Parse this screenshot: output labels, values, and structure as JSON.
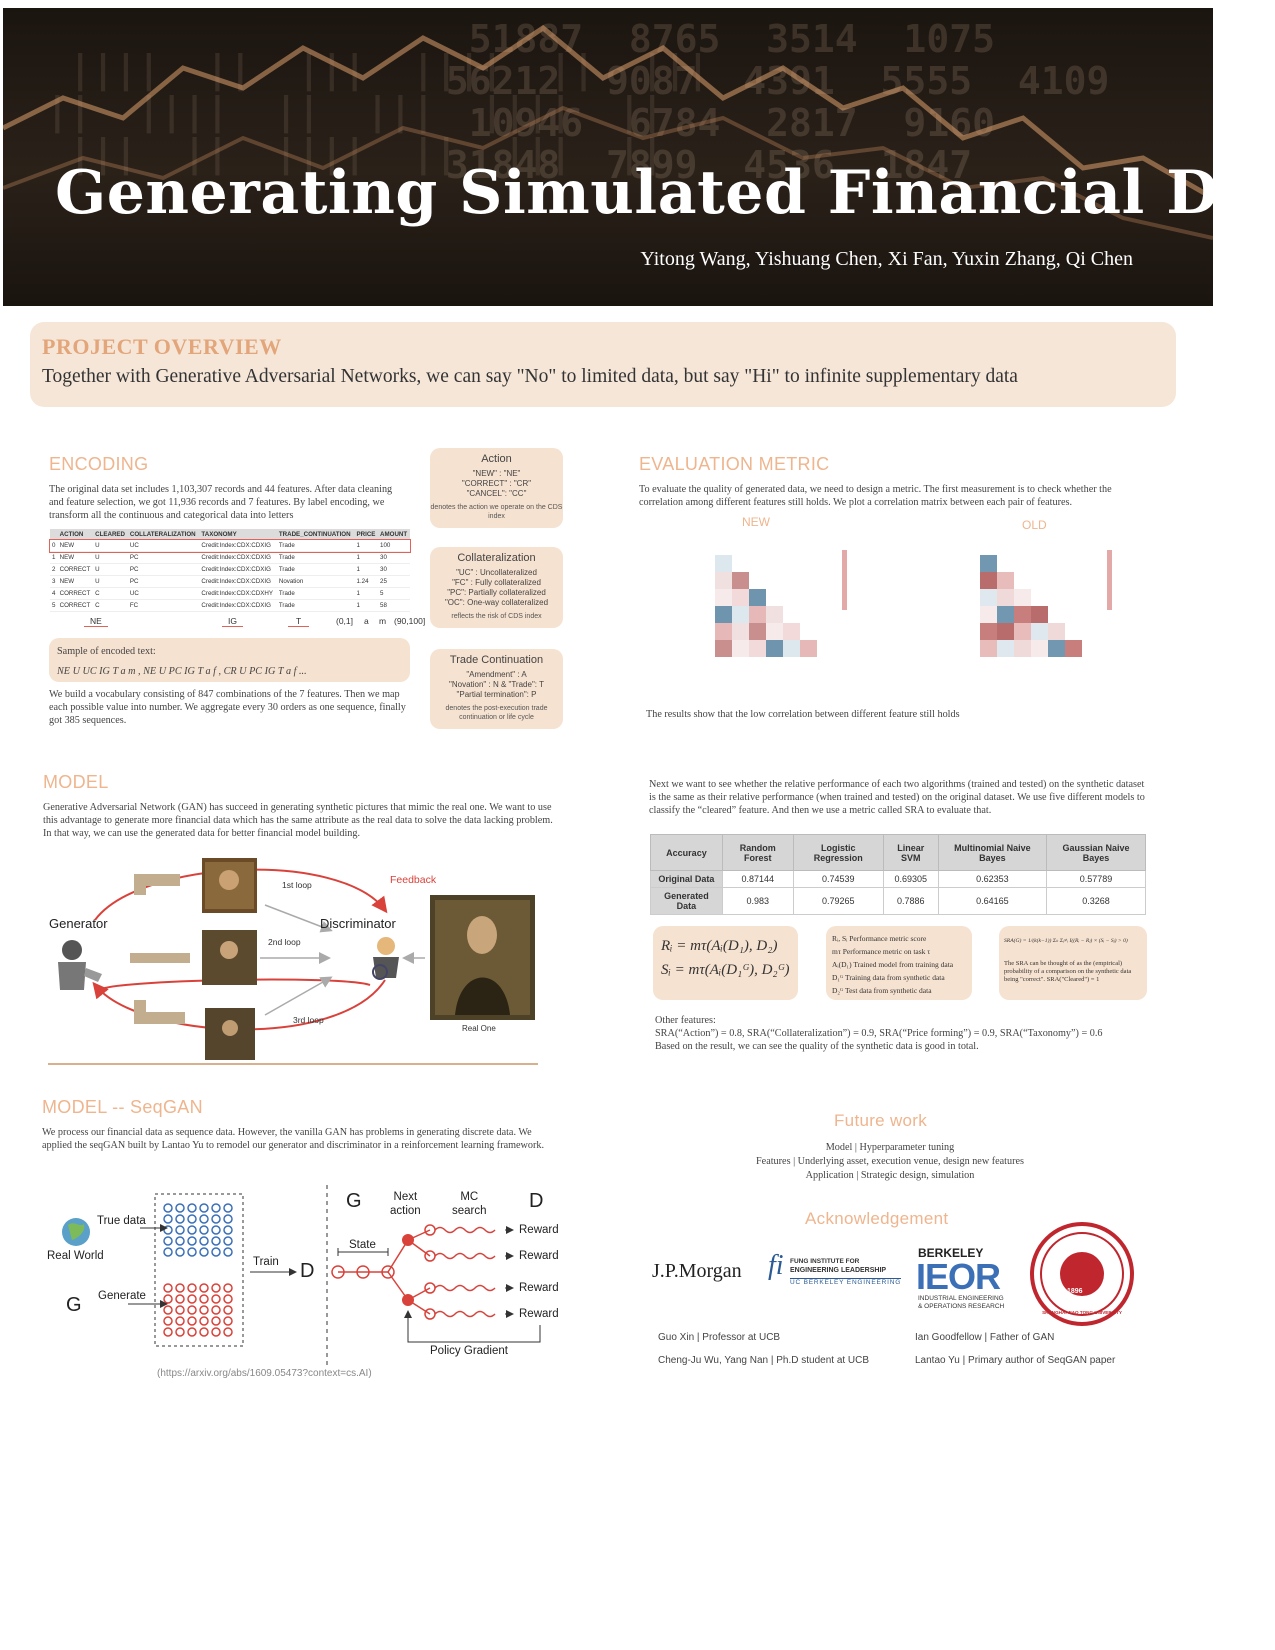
{
  "header": {
    "title": "Generating Simulated Financial Data",
    "authors": "Yitong Wang, Yishuang Chen, Xi Fan, Yuxin Zhang, Qi Chen"
  },
  "overview": {
    "heading": "PROJECT OVERVIEW",
    "text": "Together with Generative Adversarial Networks, we can say \"No\" to limited data, but say \"Hi\" to infinite supplementary data"
  },
  "encoding": {
    "heading": "ENCODING",
    "intro": "The original data set includes 1,103,307 records and 44 features. After data  cleaning and feature selection, we got 11,936 records and 7 features. By label encoding, we transform all the continuous and categorical data into letters",
    "table": {
      "columns": [
        "",
        "ACTION",
        "CLEARED",
        "COLLATERALIZATION",
        "TAXONOMY",
        "TRADE_CONTINUATION",
        "PRICE",
        "AMOUNT"
      ],
      "rows": [
        [
          "0",
          "NEW",
          "U",
          "UC",
          "Credit:Index:CDX:CDXIG",
          "Trade",
          "1",
          "100"
        ],
        [
          "1",
          "NEW",
          "U",
          "PC",
          "Credit:Index:CDX:CDXIG",
          "Trade",
          "1",
          "30"
        ],
        [
          "2",
          "CORRECT",
          "U",
          "PC",
          "Credit:Index:CDX:CDXIG",
          "Trade",
          "1",
          "30"
        ],
        [
          "3",
          "NEW",
          "U",
          "PC",
          "Credit:Index:CDX:CDXIG",
          "Novation",
          "1.24",
          "25"
        ],
        [
          "4",
          "CORRECT",
          "C",
          "UC",
          "Credit:Index:CDX:CDXHY",
          "Trade",
          "1",
          "5"
        ],
        [
          "5",
          "CORRECT",
          "C",
          "FC",
          "Credit:Index:CDX:CDXIG",
          "Trade",
          "1",
          "58"
        ]
      ],
      "codes": [
        "NE",
        "IG",
        "T",
        "(0,1]",
        "a",
        "m",
        "(90,100]"
      ]
    },
    "sample_label": "Sample of encoded text:",
    "sample_text": "NE U UC IG T a m , NE U PC IG T a f , CR U PC IG T a f ...",
    "vocab": "We build a vocabulary consisting of 847 combinations of the 7 features. Then we map each possible value into number. We aggregate every 30 orders as one sequence, finally got 385 sequences.",
    "action_box": {
      "title": "Action",
      "lines": [
        "\"NEW\" : \"NE\"",
        "\"CORRECT\" : \"CR\"",
        "\"CANCEL\": \"CC\""
      ],
      "note": "denotes the action we operate on the CDS index"
    },
    "collat_box": {
      "title": "Collateralization",
      "lines": [
        "\"UC\" : Uncollateralized",
        "\"FC\" : Fully collateralized",
        "\"PC\": Partially collateralized",
        "\"OC\": One-way collateralized"
      ],
      "note": "reflects the risk of CDS index"
    },
    "trade_box": {
      "title": "Trade Continuation",
      "lines": [
        "\"Amendment\" : A",
        "\"Novation\" : N & \"Trade\": T",
        "\"Partial termination\": P"
      ],
      "note": "denotes the post-execution trade continuation or life cycle"
    }
  },
  "model": {
    "heading": "MODEL",
    "text": "Generative Adversarial Network (GAN) has succeed in generating synthetic pictures that mimic the real one. We want to use this advantage to generate more financial data which has the same attribute as the real data to solve the data lacking problem. In that way, we can use the generated data for better financial model building.",
    "diagram": {
      "generator": "Generator",
      "discriminator": "Discriminator",
      "feedback": "Feedback",
      "loop1": "1st loop",
      "loop2": "2nd loop",
      "loop3": "3rd loop",
      "real": "Real One"
    }
  },
  "seqgan": {
    "heading": "MODEL -- SeqGAN",
    "text": "We process our financial data as sequence data. However, the vanilla GAN has problems in generating discrete data. We applied the seqGAN built by Lantao Yu to remodel our generator and discriminator in a reinforcement learning framework.",
    "diagram": {
      "true_data": "True data",
      "real_world": "Real World",
      "g": "G",
      "generate": "Generate",
      "train": "Train",
      "d": "D",
      "g2": "G",
      "next_action": "Next\naction",
      "mc_search": "MC\nsearch",
      "d2": "D",
      "state": "State",
      "rewards": [
        "Reward",
        "Reward",
        "Reward",
        "Reward"
      ],
      "policy_gradient": "Policy Gradient"
    },
    "link": "(https://arxiv.org/abs/1609.05473?context=cs.AI)"
  },
  "evaluation": {
    "heading": "EVALUATION METRIC",
    "text": "To evaluate the quality of generated data, we need to design a metric. The first measurement is to check whether the correlation among different features still holds. We plot a correlation matrix between each pair of features.",
    "new_label": "NEW",
    "old_label": "OLD",
    "result": "The results show that the low correlation between different feature still holds",
    "text2": "Next we want to see whether the relative performance of each two algorithms (trained and tested) on the synthetic dataset is the same as their relative performance (when trained and tested) on the original dataset. We use five different models to classify the “cleared” feature. And then we use a metric called SRA to evaluate that.",
    "table": {
      "columns": [
        "Accuracy",
        "Random Forest",
        "Logistic Regression",
        "Linear SVM",
        "Multinomial Naive Bayes",
        "Gaussian Naive Bayes"
      ],
      "rows": [
        [
          "Original Data",
          "0.87144",
          "0.74539",
          "0.69305",
          "0.62353",
          "0.57789"
        ],
        [
          "Generated Data",
          "0.983",
          "0.79265",
          "0.7886",
          "0.64165",
          "0.3268"
        ]
      ]
    },
    "formula1": "Rᵢ = mτ(Aᵢ(D₁), D₂)",
    "formula2": "Sᵢ = mτ(Aᵢ(D₁ᴳ), D₂ᴳ)",
    "defs": [
      "Rᵢ, Sᵢ  Performance metric score",
      "mτ    Performance metric on task τ",
      "Aᵢ(D₁)  Trained model from training data",
      "D₁ᴳ    Training data from synthetic data",
      "D₂ᴳ    Test data from synthetic data"
    ],
    "sra_formula": "SRA(G) = 1/(k(k−1)) Σₖ Σⱼ≠ᵢ I((Rᵢ − Rⱼ) × (Sᵢ − Sⱼ) > 0)",
    "sra_note": "The SRA can be thought of as the (empirical) probability of a comparison on the synthetic data being \"correct\".   SRA(\"Cleared\") = 1",
    "other_label": "Other features:",
    "other_values": "SRA(“Action”) = 0.8, SRA(“Collateralization”) = 0.9, SRA(“Price forming”) = 0.9, SRA(“Taxonomy”) = 0.6",
    "conclusion": "Based on the result, we can see the quality of the synthetic data is good in total."
  },
  "future": {
    "heading": "Future work",
    "lines": [
      "Model | Hyperparameter tuning",
      "Features | Underlying asset, execution venue, design new features",
      "Application | Strategic design, simulation"
    ]
  },
  "ack": {
    "heading": "Acknowledgement",
    "jpm": "J.P.Morgan",
    "fung1": "FUNG INSTITUTE FOR",
    "fung2": "ENGINEERING LEADERSHIP",
    "fung3": "UC BERKELEY ENGINEERING",
    "berkeley": "BERKELEY",
    "ieor": "IEOR",
    "ieor_sub1": "INDUSTRIAL ENGINEERING",
    "ieor_sub2": "& OPERATIONS RESEARCH",
    "seal_text": "SHANGHAI JIAO TONG UNIVERSITY",
    "seal_year": "1896",
    "people": [
      "Guo Xin | Professor at UCB",
      "Ian Goodfellow | Father of GAN",
      "Cheng-Ju Wu, Yang Nan | Ph.D student at UCB",
      "Lantao Yu | Primary author of SeqGAN paper"
    ]
  },
  "colors": {
    "accent": "#eeb58e",
    "box": "#f6e2d0",
    "red": "#d9423a",
    "blue": "#4e7fa3"
  }
}
